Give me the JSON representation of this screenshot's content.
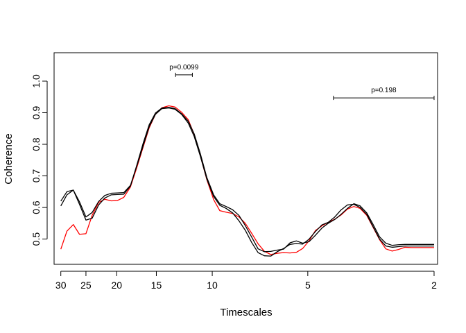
{
  "chart_data": {
    "type": "line",
    "title": "",
    "xlabel": "Timescales",
    "ylabel": "Coherence",
    "x_scale": "log",
    "xlim": [
      31.5,
      1.95
    ],
    "ylim": [
      0.42,
      1.09
    ],
    "grid": false,
    "x_ticks": [
      30,
      25,
      20,
      15,
      10,
      5,
      2
    ],
    "x_tick_labels": [
      "30",
      "25",
      "20",
      "15",
      "10",
      "5",
      "2"
    ],
    "y_ticks": [
      0.5,
      0.6,
      0.7,
      0.8,
      0.9,
      1.0
    ],
    "y_tick_labels": [
      "0.5",
      "0.6",
      "0.7",
      "0.8",
      "0.9",
      "1.0"
    ],
    "x": [
      30,
      28.7,
      27.4,
      26.2,
      25,
      23.9,
      22.8,
      21.8,
      20.8,
      19.9,
      19,
      18.1,
      17.3,
      16.5,
      15.8,
      15.1,
      14.4,
      13.7,
      13.1,
      12.5,
      11.9,
      11.4,
      10.9,
      10.4,
      9.9,
      9.47,
      9.04,
      8.63,
      8.24,
      7.87,
      7.51,
      7.17,
      6.85,
      6.54,
      6.24,
      5.96,
      5.69,
      5.43,
      5.19,
      4.95,
      4.73,
      4.51,
      4.31,
      4.11,
      3.93,
      3.75,
      3.58,
      3.42,
      3.26,
      3.12,
      2.97,
      2.84,
      2.71,
      2.59,
      2.47,
      2.36,
      2.25,
      2.15,
      2.05,
      2
    ],
    "series": [
      {
        "color": "#ff0000",
        "values": [
          0.468,
          0.525,
          0.546,
          0.515,
          0.517,
          0.575,
          0.616,
          0.626,
          0.621,
          0.622,
          0.632,
          0.665,
          0.725,
          0.792,
          0.852,
          0.895,
          0.916,
          0.922,
          0.918,
          0.902,
          0.878,
          0.831,
          0.763,
          0.688,
          0.625,
          0.59,
          0.585,
          0.581,
          0.57,
          0.55,
          0.518,
          0.485,
          0.461,
          0.451,
          0.455,
          0.457,
          0.456,
          0.458,
          0.47,
          0.495,
          0.527,
          0.542,
          0.553,
          0.563,
          0.576,
          0.595,
          0.603,
          0.597,
          0.575,
          0.539,
          0.498,
          0.469,
          0.462,
          0.467,
          0.474,
          0.473,
          0.473,
          0.473,
          0.473,
          0.473
        ]
      },
      {
        "color": "#000000",
        "values": [
          0.605,
          0.64,
          0.655,
          0.618,
          0.57,
          0.584,
          0.619,
          0.638,
          0.645,
          0.646,
          0.647,
          0.67,
          0.73,
          0.796,
          0.856,
          0.895,
          0.913,
          0.915,
          0.911,
          0.895,
          0.867,
          0.825,
          0.762,
          0.69,
          0.635,
          0.607,
          0.597,
          0.583,
          0.558,
          0.528,
          0.489,
          0.457,
          0.447,
          0.446,
          0.46,
          0.47,
          0.483,
          0.486,
          0.484,
          0.5,
          0.524,
          0.545,
          0.553,
          0.57,
          0.592,
          0.608,
          0.61,
          0.6,
          0.578,
          0.541,
          0.5,
          0.478,
          0.474,
          0.476,
          0.478,
          0.478,
          0.478,
          0.478,
          0.478,
          0.478
        ]
      },
      {
        "color": "#000000",
        "values": [
          0.62,
          0.65,
          0.655,
          0.61,
          0.56,
          0.566,
          0.608,
          0.63,
          0.64,
          0.641,
          0.642,
          0.668,
          0.733,
          0.804,
          0.862,
          0.899,
          0.915,
          0.917,
          0.913,
          0.897,
          0.873,
          0.833,
          0.77,
          0.695,
          0.64,
          0.612,
          0.603,
          0.593,
          0.575,
          0.543,
          0.506,
          0.469,
          0.46,
          0.461,
          0.465,
          0.468,
          0.488,
          0.494,
          0.487,
          0.492,
          0.512,
          0.535,
          0.55,
          0.562,
          0.578,
          0.597,
          0.612,
          0.605,
          0.583,
          0.548,
          0.507,
          0.487,
          0.48,
          0.482,
          0.483,
          0.483,
          0.483,
          0.483,
          0.483,
          0.483
        ]
      }
    ],
    "annotations": [
      {
        "label": "p=0.0099",
        "x_from": 13.05,
        "x_to": 11.55,
        "y": 1.02
      },
      {
        "label": "p=0.198",
        "x_from": 4.15,
        "x_to": 2.0,
        "y": 0.947
      }
    ]
  }
}
